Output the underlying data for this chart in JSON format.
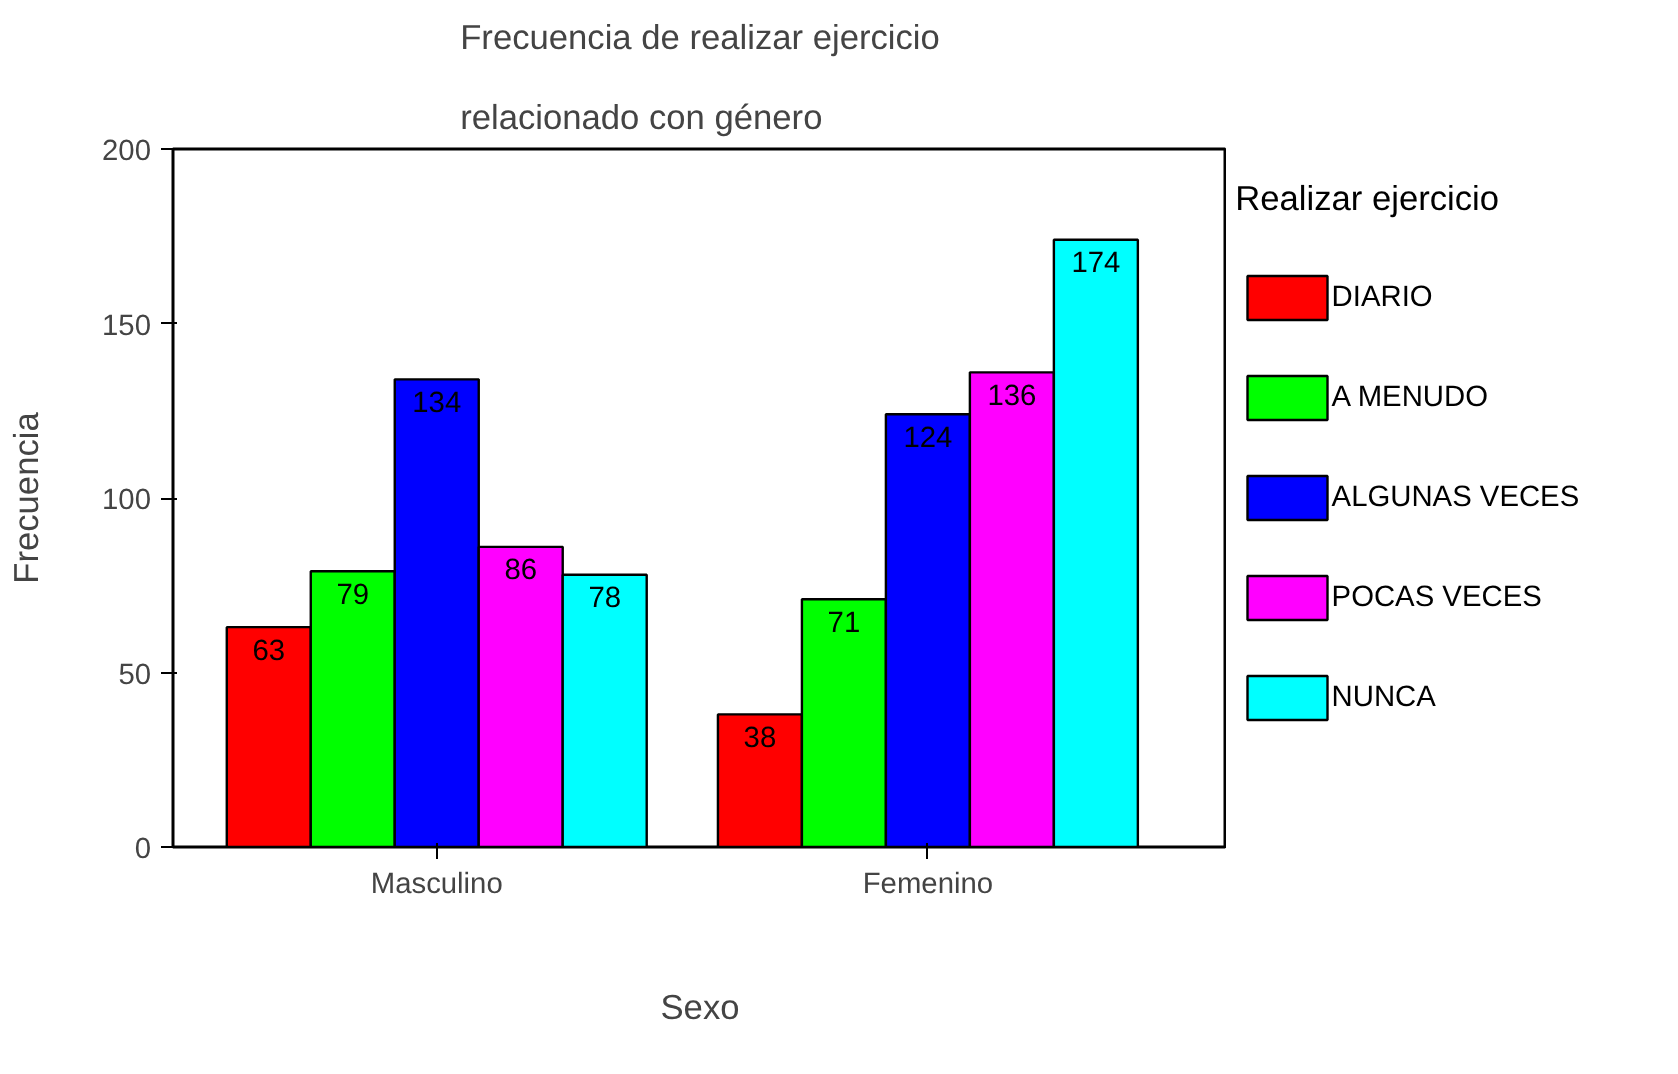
{
  "chart_data": {
    "type": "bar",
    "title": "Frecuencia de realizar ejercicio\nrelacionado con género",
    "xlabel": "Sexo",
    "ylabel": "Frecuencia",
    "legend_title": "Realizar ejercicio",
    "categories": [
      "Masculino",
      "Femenino"
    ],
    "series": [
      {
        "name": "DIARIO",
        "color": "#ff0000",
        "values": [
          63,
          38
        ]
      },
      {
        "name": "A MENUDO",
        "color": "#00ff00",
        "values": [
          79,
          71
        ]
      },
      {
        "name": "ALGUNAS VECES",
        "color": "#0000ff",
        "values": [
          134,
          124
        ]
      },
      {
        "name": "POCAS VECES",
        "color": "#ff00ff",
        "values": [
          86,
          136
        ]
      },
      {
        "name": "NUNCA",
        "color": "#00ffff",
        "values": [
          78,
          174
        ]
      }
    ],
    "ylim": [
      0,
      200
    ],
    "yticks": [
      0,
      50,
      100,
      150,
      200
    ],
    "grid": false,
    "legend": "right",
    "data_labels": true
  }
}
